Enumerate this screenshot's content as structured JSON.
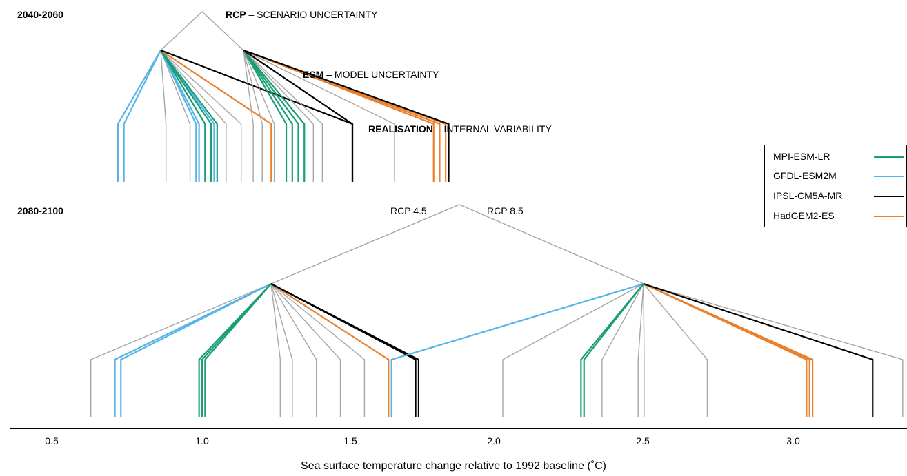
{
  "colors": {
    "MPI-ESM-LR": "#1a9e77",
    "GFDL-ESM2M": "#56b4e9",
    "IPSL-CM5A-MR": "#000000",
    "HadGEM2-ES": "#e8802e",
    "other": "#a6a6a6"
  },
  "period_top": "2040-2060",
  "period_bottom": "2080-2100",
  "levels": [
    {
      "key": "RCP",
      "desc": " – SCENARIO UNCERTAINTY"
    },
    {
      "key": "ESM",
      "desc": " – MODEL UNCERTAINTY"
    },
    {
      "key": "REALISATION",
      "desc": " – INTERNAL VARIABILITY"
    }
  ],
  "rcp_left": "RCP 4.5",
  "rcp_right": "RCP 8.5",
  "legend": [
    {
      "name": "MPI-ESM-LR"
    },
    {
      "name": "GFDL-ESM2M"
    },
    {
      "name": "IPSL-CM5A-MR"
    },
    {
      "name": "HadGEM2-ES"
    }
  ],
  "axis": {
    "ticks": [
      "0.5",
      "1.0",
      "1.5",
      "2.0",
      "2.5",
      "3.0"
    ],
    "label": "Sea surface temperature change relative to 1992 baseline (˚C)"
  },
  "diagram": {
    "top": {
      "rcp45": [
        {
          "esm": "GFDL-ESM2M",
          "x": 0.74,
          "members": [
            0.72,
            0.74
          ]
        },
        {
          "esm": "other",
          "x": 0.88,
          "members": [
            0.88
          ]
        },
        {
          "esm": "other",
          "x": 0.96,
          "members": [
            0.96
          ]
        },
        {
          "esm": "GFDL-ESM2M",
          "x": 0.99,
          "members": [
            0.98,
            0.99,
            1.01,
            1.04
          ]
        },
        {
          "esm": "MPI-ESM-LR",
          "x": 1.03,
          "members": [
            1.01,
            1.03,
            1.05
          ]
        },
        {
          "esm": "other",
          "x": 1.08,
          "members": [
            1.08
          ]
        },
        {
          "esm": "other",
          "x": 1.13,
          "members": [
            1.13
          ]
        },
        {
          "esm": "HadGEM2-ES",
          "x": 1.23,
          "members": [
            1.23
          ]
        },
        {
          "esm": "IPSL-CM5A-MR",
          "x": 1.5,
          "members": [
            1.5
          ]
        }
      ],
      "rcp85": [
        {
          "esm": "other",
          "x": 1.17,
          "members": [
            1.17,
            1.2
          ]
        },
        {
          "esm": "other",
          "x": 1.24,
          "members": [
            1.24
          ]
        },
        {
          "esm": "MPI-ESM-LR",
          "x": 1.3,
          "members": [
            1.28,
            1.3,
            1.32,
            1.34
          ]
        },
        {
          "esm": "other",
          "x": 1.37,
          "members": [
            1.37,
            1.4
          ]
        },
        {
          "esm": "IPSL-CM5A-MR",
          "x": 1.5,
          "members": [
            1.5
          ]
        },
        {
          "esm": "other",
          "x": 1.64,
          "members": [
            1.64
          ]
        },
        {
          "esm": "HadGEM2-ES",
          "x": 1.79,
          "members": [
            1.77,
            1.79,
            1.81
          ]
        },
        {
          "esm": "IPSL-CM5A-MR",
          "x": 1.82,
          "members": [
            1.82
          ]
        }
      ]
    },
    "bottom": {
      "rcp45": [
        {
          "esm": "other",
          "x": 0.63,
          "members": [
            0.63
          ]
        },
        {
          "esm": "GFDL-ESM2M",
          "x": 0.72,
          "members": [
            0.71,
            0.73
          ]
        },
        {
          "esm": "MPI-ESM-LR",
          "x": 1.01,
          "members": [
            0.99,
            1.0,
            1.01
          ]
        },
        {
          "esm": "other",
          "x": 1.26,
          "members": [
            1.26,
            1.3
          ]
        },
        {
          "esm": "other",
          "x": 1.38,
          "members": [
            1.38
          ]
        },
        {
          "esm": "other",
          "x": 1.46,
          "members": [
            1.46
          ]
        },
        {
          "esm": "other",
          "x": 1.54,
          "members": [
            1.54
          ]
        },
        {
          "esm": "HadGEM2-ES",
          "x": 1.62,
          "members": [
            1.62
          ]
        },
        {
          "esm": "IPSL-CM5A-MR",
          "x": 1.72,
          "members": [
            1.71,
            1.72
          ]
        }
      ],
      "rcp85": [
        {
          "esm": "GFDL-ESM2M",
          "x": 1.64,
          "members": [
            1.63
          ]
        },
        {
          "esm": "other",
          "x": 2.0,
          "members": [
            2.0
          ]
        },
        {
          "esm": "MPI-ESM-LR",
          "x": 2.27,
          "members": [
            2.26,
            2.27
          ]
        },
        {
          "esm": "other",
          "x": 2.33,
          "members": [
            2.33
          ]
        },
        {
          "esm": "other",
          "x": 2.45,
          "members": [
            2.45,
            2.47
          ]
        },
        {
          "esm": "other",
          "x": 2.68,
          "members": [
            2.68
          ]
        },
        {
          "esm": "HadGEM2-ES",
          "x": 3.02,
          "members": [
            3.01,
            3.02,
            3.03
          ]
        },
        {
          "esm": "IPSL-CM5A-MR",
          "x": 3.23,
          "members": [
            3.23
          ]
        },
        {
          "esm": "other",
          "x": 3.33,
          "members": [
            3.33
          ]
        }
      ]
    }
  }
}
